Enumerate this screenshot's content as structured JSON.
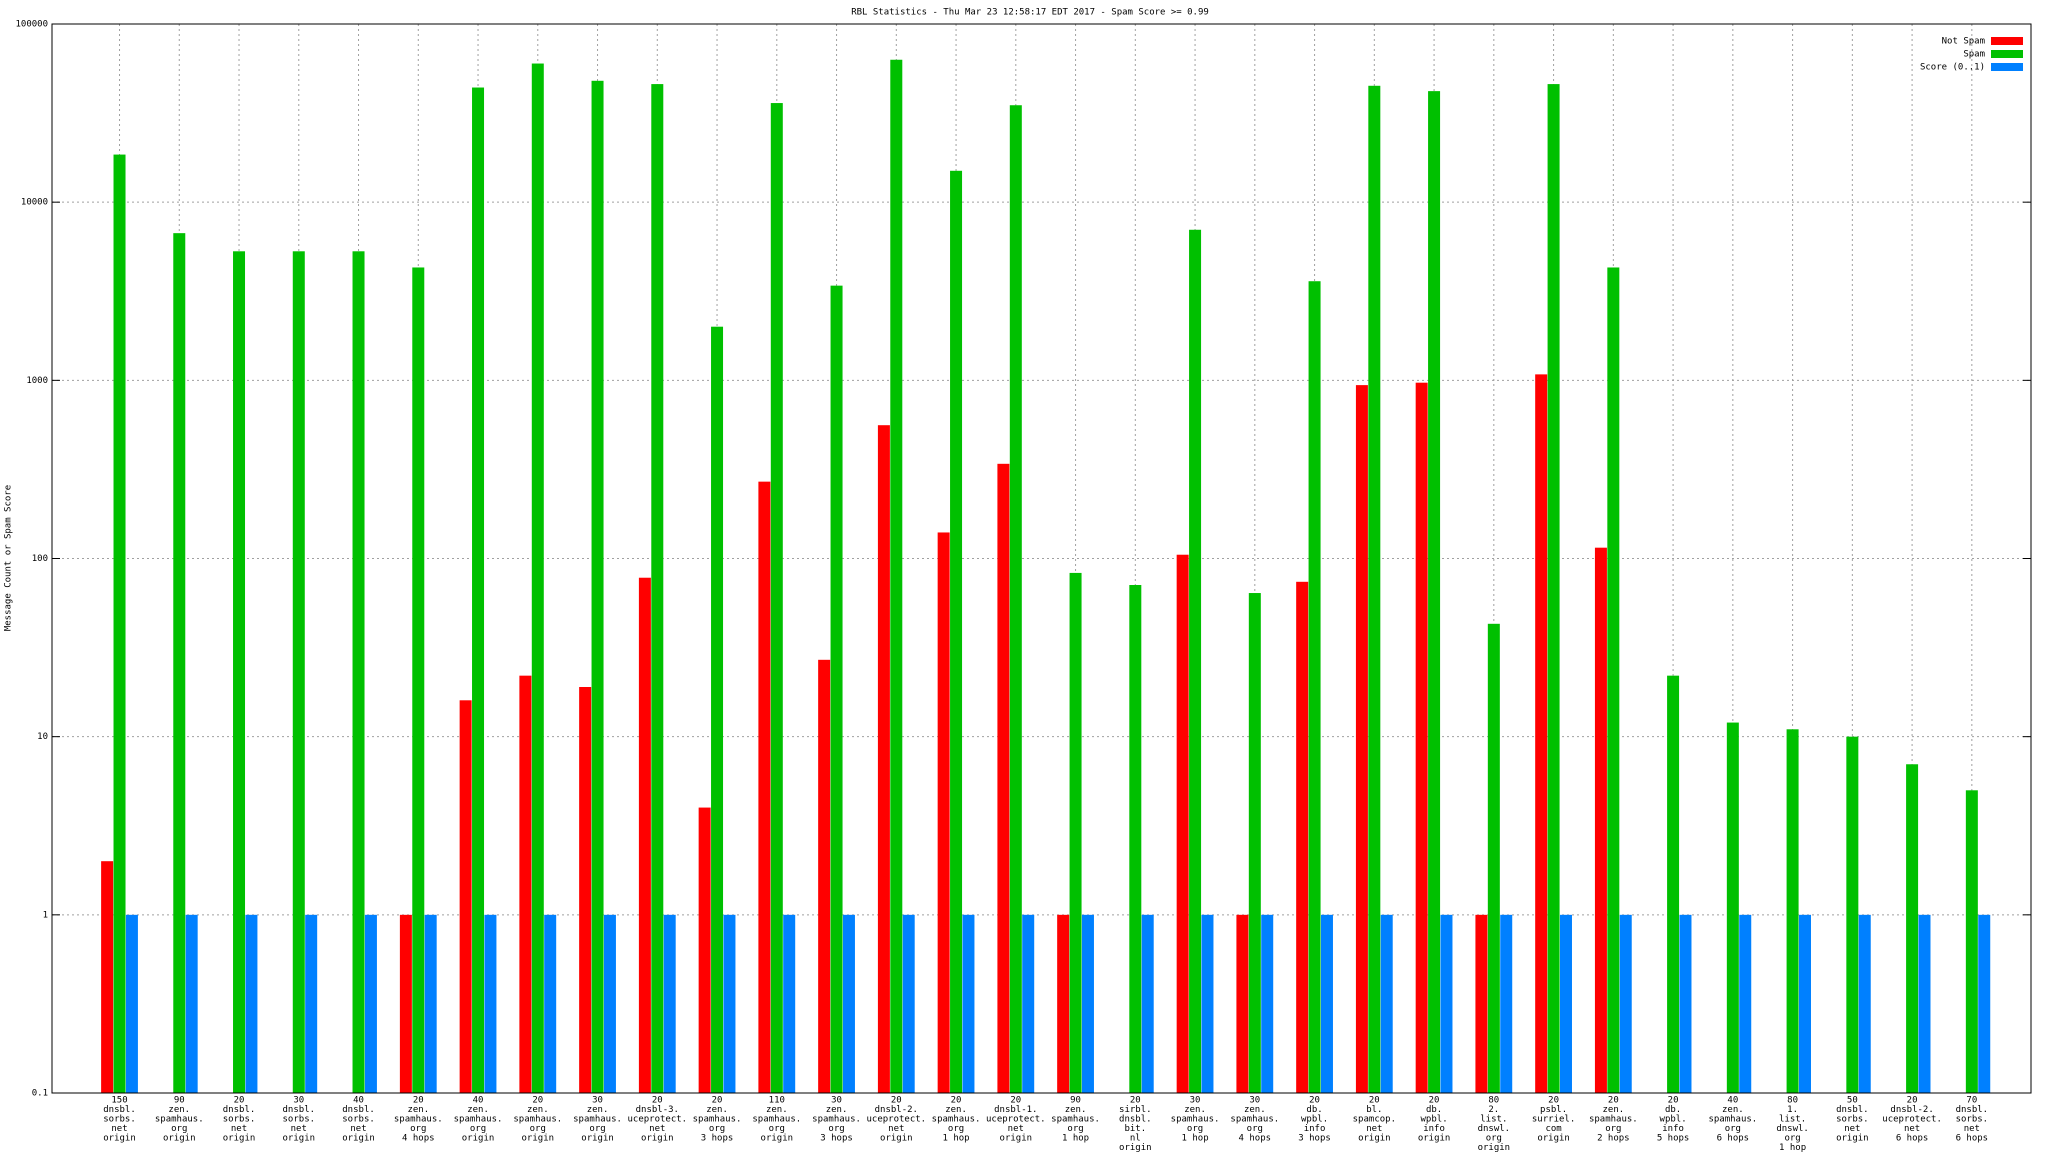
{
  "chart_data": {
    "type": "bar",
    "title": "RBL Statistics - Thu Mar 23 12:58:17 EDT 2017 - Spam Score >= 0.99",
    "y_label": "Message Count or Spam Score",
    "yscale": "log",
    "grid": true,
    "legend": "top-right",
    "ylim": [
      0.1,
      100000
    ],
    "yticks": [
      0.1,
      1,
      10,
      100,
      1000,
      10000,
      100000
    ],
    "categories": [
      [
        "150",
        "dnsbl.",
        "sorbs.",
        "net",
        "origin"
      ],
      [
        "90",
        "zen.",
        "spamhaus.",
        "org",
        "origin"
      ],
      [
        "20",
        "dnsbl.",
        "sorbs.",
        "net",
        "origin"
      ],
      [
        "30",
        "dnsbl.",
        "sorbs.",
        "net",
        "origin"
      ],
      [
        "40",
        "dnsbl.",
        "sorbs.",
        "net",
        "origin"
      ],
      [
        "20",
        "zen.",
        "spamhaus.",
        "org",
        "4 hops"
      ],
      [
        "40",
        "zen.",
        "spamhaus.",
        "org",
        "origin"
      ],
      [
        "20",
        "zen.",
        "spamhaus.",
        "org",
        "origin"
      ],
      [
        "30",
        "zen.",
        "spamhaus.",
        "org",
        "origin"
      ],
      [
        "20",
        "dnsbl-3.",
        "uceprotect.",
        "net",
        "origin"
      ],
      [
        "20",
        "zen.",
        "spamhaus.",
        "org",
        "3 hops"
      ],
      [
        "110",
        "zen.",
        "spamhaus.",
        "org",
        "origin"
      ],
      [
        "30",
        "zen.",
        "spamhaus.",
        "org",
        "3 hops"
      ],
      [
        "20",
        "dnsbl-2.",
        "uceprotect.",
        "net",
        "origin"
      ],
      [
        "20",
        "zen.",
        "spamhaus.",
        "org",
        "1 hop"
      ],
      [
        "20",
        "dnsbl-1.",
        "uceprotect.",
        "net",
        "origin"
      ],
      [
        "90",
        "zen.",
        "spamhaus.",
        "org",
        "1 hop"
      ],
      [
        "20",
        "sirbl.",
        "dnsbl.",
        "bit.",
        "nl",
        "origin"
      ],
      [
        "30",
        "zen.",
        "spamhaus.",
        "org",
        "1 hop"
      ],
      [
        "30",
        "zen.",
        "spamhaus.",
        "org",
        "4 hops"
      ],
      [
        "20",
        "db.",
        "wpbl.",
        "info",
        "3 hops"
      ],
      [
        "20",
        "bl.",
        "spamcop.",
        "net",
        "origin"
      ],
      [
        "20",
        "db.",
        "wpbl.",
        "info",
        "origin"
      ],
      [
        "80",
        "2.",
        "list.",
        "dnswl.",
        "org",
        "origin"
      ],
      [
        "20",
        "psbl.",
        "surriel.",
        "com",
        "origin"
      ],
      [
        "20",
        "zen.",
        "spamhaus.",
        "org",
        "2 hops"
      ],
      [
        "20",
        "db.",
        "wpbl.",
        "info",
        "5 hops"
      ],
      [
        "40",
        "zen.",
        "spamhaus.",
        "org",
        "6 hops"
      ],
      [
        "80",
        "1.",
        "list.",
        "dnswl.",
        "org",
        "1 hop"
      ],
      [
        "50",
        "dnsbl.",
        "sorbs.",
        "net",
        "origin"
      ],
      [
        "20",
        "dnsbl-2.",
        "uceprotect.",
        "net",
        "6 hops"
      ],
      [
        "70",
        "dnsbl.",
        "sorbs.",
        "net",
        "6 hops"
      ]
    ],
    "series": [
      {
        "name": "Not Spam",
        "color": "#ff0000",
        "values": [
          2,
          null,
          null,
          null,
          null,
          1,
          16,
          22,
          19,
          78,
          4,
          270,
          27,
          560,
          140,
          340,
          1,
          null,
          105,
          1,
          74,
          940,
          970,
          1,
          1080,
          115,
          null,
          null,
          null,
          null,
          null,
          null
        ]
      },
      {
        "name": "Spam",
        "color": "#00c000",
        "values": [
          18500,
          6700,
          5300,
          5300,
          5300,
          4300,
          44000,
          60000,
          48000,
          46000,
          2000,
          36000,
          3400,
          63000,
          15000,
          35000,
          83,
          71,
          7000,
          64,
          3600,
          45000,
          42000,
          43,
          46000,
          4300,
          22,
          12,
          11,
          10,
          7,
          5
        ]
      },
      {
        "name": "Score (0..1)",
        "color": "#0080ff",
        "values": [
          1,
          1,
          1,
          1,
          1,
          1,
          1,
          1,
          1,
          1,
          1,
          1,
          1,
          1,
          1,
          1,
          1,
          1,
          1,
          1,
          1,
          1,
          1,
          1,
          1,
          1,
          1,
          1,
          1,
          1,
          1,
          1
        ]
      }
    ]
  }
}
